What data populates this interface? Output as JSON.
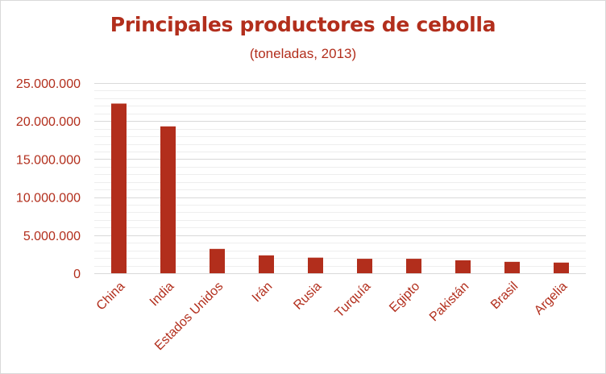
{
  "chart_data": {
    "type": "bar",
    "title": "Principales productores de cebolla",
    "subtitle": "(toneladas, 2013)",
    "categories": [
      "China",
      "India",
      "Estados Unidos",
      "Irán",
      "Rusia",
      "Turquía",
      "Egipto",
      "Pakistán",
      "Brasil",
      "Argelia"
    ],
    "values": [
      22300000,
      19300000,
      3200000,
      2350000,
      2050000,
      1900000,
      1900000,
      1700000,
      1500000,
      1400000
    ],
    "ylim": [
      0,
      25000000
    ],
    "yticks": [
      0,
      5000000,
      10000000,
      15000000,
      20000000,
      25000000
    ],
    "ytick_labels": [
      "0",
      "5.000.000",
      "10.000.000",
      "15.000.000",
      "20.000.000",
      "25.000.000"
    ],
    "grid": true,
    "bar_color": "#b22e1c",
    "text_color": "#b22e1c",
    "major_grid_color": "#d9d9d9",
    "minor_grid_color": "#eeeeee"
  }
}
